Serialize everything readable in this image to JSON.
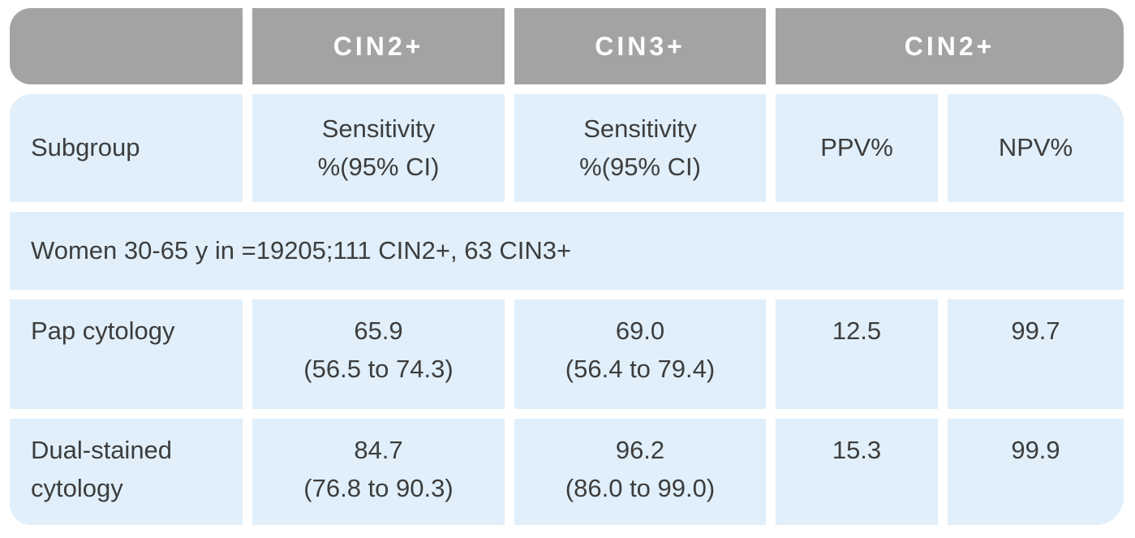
{
  "colors": {
    "header_bg": "#a3a3a3",
    "header_text": "#ffffff",
    "cell_bg": "#e0effa",
    "body_text": "#3d3d3d",
    "page_bg": "#ffffff"
  },
  "table": {
    "header_groups": [
      {
        "label": ""
      },
      {
        "label": "CIN2+"
      },
      {
        "label": "CIN3+"
      },
      {
        "label": "CIN2+"
      }
    ],
    "column_headers": [
      {
        "label": "Subgroup"
      },
      {
        "label": "Sensitivity\n%(95% CI)"
      },
      {
        "label": "Sensitivity\n%(95% CI)"
      },
      {
        "label": "PPV%"
      },
      {
        "label": "NPV%"
      }
    ],
    "section_row": {
      "label": "Women 30-65 y in =19205;111 CIN2+, 63 CIN3+"
    },
    "rows": [
      {
        "subgroup": "Pap cytology",
        "cin2_sensitivity": "65.9\n(56.5 to 74.3)",
        "cin3_sensitivity": "69.0\n(56.4 to 79.4)",
        "ppv": "12.5",
        "npv": "99.7"
      },
      {
        "subgroup": "Dual-stained\ncytology",
        "cin2_sensitivity": "84.7\n(76.8 to 90.3)",
        "cin3_sensitivity": "96.2\n(86.0 to 99.0)",
        "ppv": "15.3",
        "npv": "99.9"
      }
    ]
  },
  "chart_data": {
    "type": "table",
    "title": "",
    "column_groups": [
      "",
      "CIN2+",
      "CIN3+",
      "CIN2+",
      "CIN2+"
    ],
    "columns": [
      "Subgroup",
      "Sensitivity %(95% CI)",
      "Sensitivity %(95% CI)",
      "PPV%",
      "NPV%"
    ],
    "section": "Women 30-65 y in =19205;111 CIN2+, 63 CIN3+",
    "rows": [
      [
        "Pap cytology",
        "65.9 (56.5 to 74.3)",
        "69.0 (56.4 to 79.4)",
        "12.5",
        "99.7"
      ],
      [
        "Dual-stained cytology",
        "84.7 (76.8 to 90.3)",
        "96.2 (86.0 to 99.0)",
        "15.3",
        "99.9"
      ]
    ]
  }
}
